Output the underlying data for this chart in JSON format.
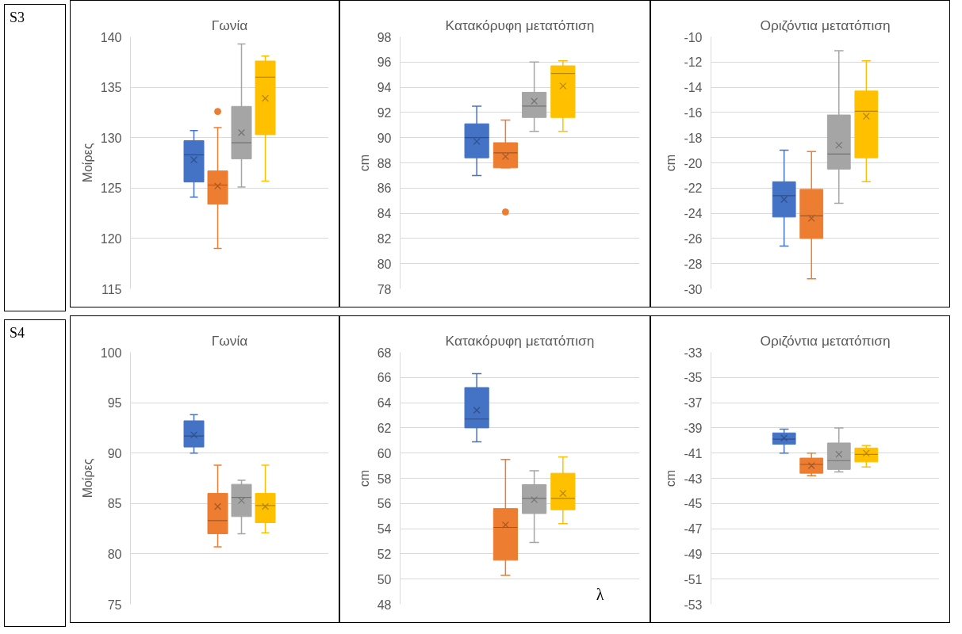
{
  "chart_data": [
    {
      "type": "box",
      "title": "Γωνία",
      "ylabel": "Μοίρες",
      "categories": [
        null
      ],
      "ylim": [
        115,
        140
      ],
      "yticks": [
        115,
        120,
        125,
        130,
        135,
        140
      ],
      "grid": "y",
      "tick_labels": "y",
      "annotations": [
        "S3"
      ],
      "series": [
        {
          "color": "#4472c4",
          "boxes": [
            {
              "low": 124.1,
              "q1": 125.6,
              "median": 128.3,
              "q3": 129.7,
              "high": 130.7,
              "mean": 127.8
            }
          ]
        },
        {
          "color": "#ed7d31",
          "boxes": [
            {
              "low": 119.0,
              "q1": 123.4,
              "median": 125.3,
              "q3": 126.7,
              "high": 131.0,
              "mean": 125.2,
              "outliers": [
                132.6
              ]
            }
          ]
        },
        {
          "color": "#a5a5a5",
          "boxes": [
            {
              "low": 125.1,
              "q1": 127.9,
              "median": 129.5,
              "q3": 133.1,
              "high": 139.3,
              "mean": 130.5
            }
          ]
        },
        {
          "color": "#ffc000",
          "boxes": [
            {
              "low": 125.7,
              "q1": 130.3,
              "median": 136.0,
              "q3": 137.6,
              "high": 138.1,
              "mean": 133.9
            }
          ]
        }
      ]
    },
    {
      "type": "box",
      "title": "Κατακόρυφη μετατόπιση",
      "ylabel": "cm",
      "categories": [
        null
      ],
      "ylim": [
        78,
        98
      ],
      "yticks": [
        78,
        80,
        82,
        84,
        86,
        88,
        90,
        92,
        94,
        96,
        98
      ],
      "grid": "y",
      "tick_labels": "y",
      "series": [
        {
          "color": "#4472c4",
          "boxes": [
            {
              "low": 87.0,
              "q1": 88.4,
              "median": 90.0,
              "q3": 91.1,
              "high": 92.5,
              "mean": 89.7
            }
          ]
        },
        {
          "color": "#ed7d31",
          "boxes": [
            {
              "low": 87.6,
              "q1": 87.6,
              "median": 88.8,
              "q3": 89.6,
              "high": 91.4,
              "mean": 88.5,
              "outliers": [
                84.1
              ]
            }
          ]
        },
        {
          "color": "#a5a5a5",
          "boxes": [
            {
              "low": 90.5,
              "q1": 91.6,
              "median": 92.5,
              "q3": 93.6,
              "high": 96.0,
              "mean": 92.9
            }
          ]
        },
        {
          "color": "#ffc000",
          "boxes": [
            {
              "low": 90.5,
              "q1": 91.6,
              "median": 95.1,
              "q3": 95.7,
              "high": 96.1,
              "mean": 94.1
            }
          ]
        }
      ]
    },
    {
      "type": "box",
      "title": "Οριζόντια μετατόπιση",
      "ylabel": "cm",
      "categories": [
        null
      ],
      "ylim": [
        -30,
        -10
      ],
      "yticks": [
        -30,
        -28,
        -26,
        -24,
        -22,
        -20,
        -18,
        -16,
        -14,
        -12,
        -10
      ],
      "grid": "y",
      "tick_labels": "y",
      "series": [
        {
          "color": "#4472c4",
          "boxes": [
            {
              "low": -26.6,
              "q1": -24.3,
              "median": -22.6,
              "q3": -21.5,
              "high": -19.0,
              "mean": -22.9
            }
          ]
        },
        {
          "color": "#ed7d31",
          "boxes": [
            {
              "low": -29.2,
              "q1": -26.0,
              "median": -24.2,
              "q3": -22.1,
              "high": -19.1,
              "mean": -24.4
            }
          ]
        },
        {
          "color": "#a5a5a5",
          "boxes": [
            {
              "low": -23.2,
              "q1": -20.5,
              "median": -19.3,
              "q3": -16.2,
              "high": -11.1,
              "mean": -18.6
            }
          ]
        },
        {
          "color": "#ffc000",
          "boxes": [
            {
              "low": -21.5,
              "q1": -19.6,
              "median": -15.9,
              "q3": -14.3,
              "high": -11.9,
              "mean": -16.3
            }
          ]
        }
      ]
    },
    {
      "type": "box",
      "title": "Γωνία",
      "ylabel": "Μοίρες",
      "categories": [
        null
      ],
      "ylim": [
        75,
        100
      ],
      "yticks": [
        75,
        80,
        85,
        90,
        95,
        100
      ],
      "grid": "y",
      "tick_labels": "y",
      "annotations": [
        "S4"
      ],
      "series": [
        {
          "color": "#4472c4",
          "boxes": [
            {
              "low": 90.0,
              "q1": 90.6,
              "median": 91.7,
              "q3": 93.2,
              "high": 93.8,
              "mean": 91.8
            }
          ]
        },
        {
          "color": "#ed7d31",
          "boxes": [
            {
              "low": 80.7,
              "q1": 82.0,
              "median": 83.3,
              "q3": 86.0,
              "high": 88.8,
              "mean": 84.7
            }
          ]
        },
        {
          "color": "#a5a5a5",
          "boxes": [
            {
              "low": 82.0,
              "q1": 83.7,
              "median": 85.6,
              "q3": 86.9,
              "high": 87.3,
              "mean": 85.3
            }
          ]
        },
        {
          "color": "#ffc000",
          "boxes": [
            {
              "low": 82.1,
              "q1": 83.1,
              "median": 84.8,
              "q3": 86.0,
              "high": 88.8,
              "mean": 84.7
            }
          ]
        }
      ]
    },
    {
      "type": "box",
      "title": "Κατακόρυφη μετατόπιση",
      "ylabel": "cm",
      "categories": [
        null
      ],
      "ylim": [
        48,
        68
      ],
      "yticks": [
        48,
        50,
        52,
        54,
        56,
        58,
        60,
        62,
        64,
        66,
        68
      ],
      "grid": "y",
      "tick_labels": "y",
      "annotations": [
        "λ"
      ],
      "series": [
        {
          "color": "#4472c4",
          "boxes": [
            {
              "low": 60.9,
              "q1": 62.0,
              "median": 62.7,
              "q3": 65.2,
              "high": 66.3,
              "mean": 63.4
            }
          ]
        },
        {
          "color": "#ed7d31",
          "boxes": [
            {
              "low": 50.3,
              "q1": 51.5,
              "median": 54.1,
              "q3": 55.6,
              "high": 59.5,
              "mean": 54.3
            }
          ]
        },
        {
          "color": "#a5a5a5",
          "boxes": [
            {
              "low": 52.9,
              "q1": 55.2,
              "median": 56.4,
              "q3": 57.5,
              "high": 58.6,
              "mean": 56.3
            }
          ]
        },
        {
          "color": "#ffc000",
          "boxes": [
            {
              "low": 54.4,
              "q1": 55.5,
              "median": 56.4,
              "q3": 58.4,
              "high": 59.7,
              "mean": 56.8
            }
          ]
        }
      ]
    },
    {
      "type": "box",
      "title": "Οριζόντια μετατόπιση",
      "ylabel": "cm",
      "categories": [
        null
      ],
      "ylim": [
        -53,
        -33
      ],
      "yticks": [
        -53,
        -51,
        -49,
        -47,
        -45,
        -43,
        -41,
        -39,
        -37,
        -35,
        -33
      ],
      "grid": "y",
      "tick_labels": "y",
      "series": [
        {
          "color": "#4472c4",
          "boxes": [
            {
              "low": -41.0,
              "q1": -40.3,
              "median": -39.9,
              "q3": -39.4,
              "high": -39.1,
              "mean": -39.8
            }
          ]
        },
        {
          "color": "#ed7d31",
          "boxes": [
            {
              "low": -42.8,
              "q1": -42.6,
              "median": -41.9,
              "q3": -41.4,
              "high": -41.0,
              "mean": -42.0
            }
          ]
        },
        {
          "color": "#a5a5a5",
          "boxes": [
            {
              "low": -42.5,
              "q1": -42.3,
              "median": -41.6,
              "q3": -40.2,
              "high": -39.0,
              "mean": -41.1
            }
          ]
        },
        {
          "color": "#ffc000",
          "boxes": [
            {
              "low": -42.1,
              "q1": -41.7,
              "median": -41.1,
              "q3": -40.6,
              "high": -40.4,
              "mean": -41.0
            }
          ]
        }
      ]
    }
  ]
}
